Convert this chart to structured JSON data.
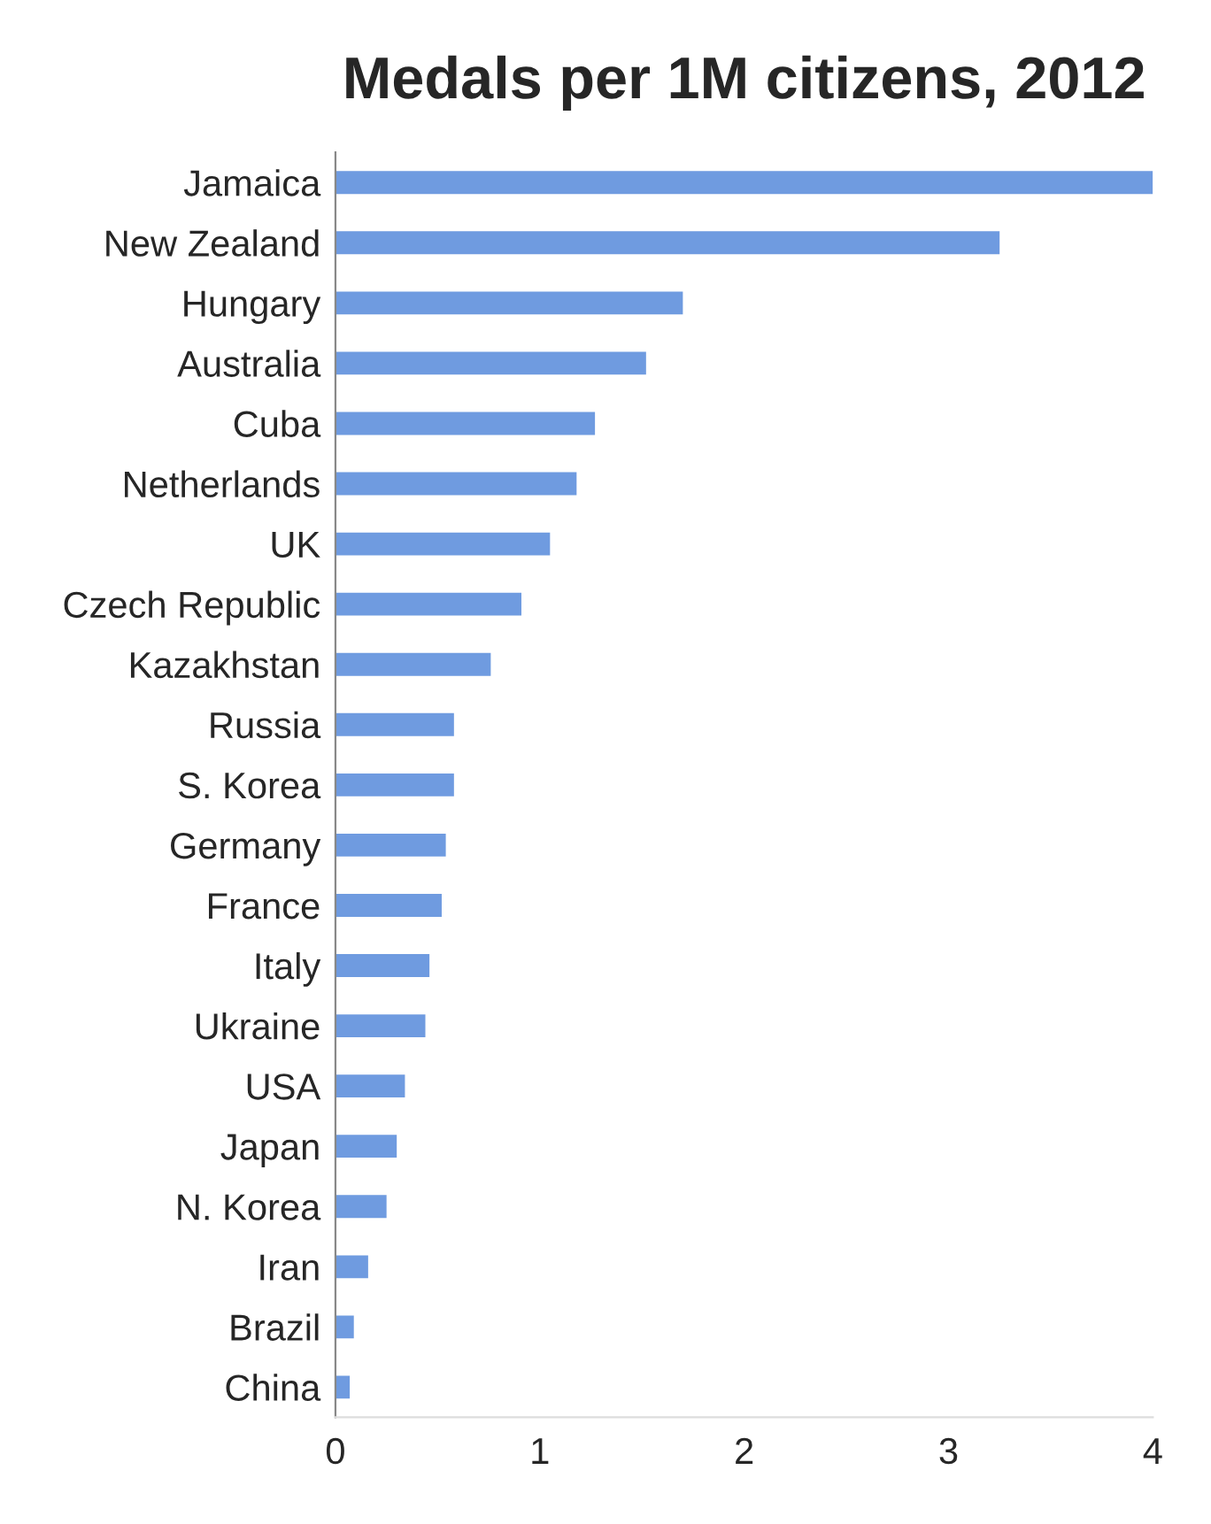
{
  "chart_data": {
    "type": "bar",
    "title": "Medals per 1M citizens, 2012",
    "orientation": "horizontal",
    "categories": [
      "Jamaica",
      "New Zealand",
      "Hungary",
      "Australia",
      "Cuba",
      "Netherlands",
      "UK",
      "Czech Republic",
      "Kazakhstan",
      "Russia",
      "S. Korea",
      "Germany",
      "France",
      "Italy",
      "Ukraine",
      "USA",
      "Japan",
      "N. Korea",
      "Iran",
      "Brazil",
      "China"
    ],
    "values": [
      4.0,
      3.25,
      1.7,
      1.52,
      1.27,
      1.18,
      1.05,
      0.91,
      0.76,
      0.58,
      0.58,
      0.54,
      0.52,
      0.46,
      0.44,
      0.34,
      0.3,
      0.25,
      0.16,
      0.09,
      0.07
    ],
    "color": "#6f9be0",
    "xlim": [
      0,
      4
    ],
    "xticks": [
      0,
      1,
      2,
      3,
      4
    ],
    "grid": false
  }
}
